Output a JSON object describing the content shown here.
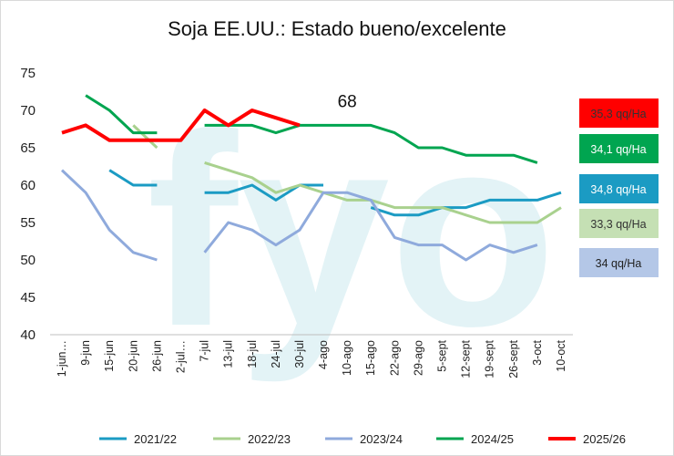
{
  "chart_data": {
    "type": "line",
    "title": "Soja EE.UU.: Estado bueno/excelente",
    "ylim": [
      40,
      75
    ],
    "yticks": [
      "40",
      "45",
      "50",
      "55",
      "60",
      "65",
      "70",
      "75"
    ],
    "categories": [
      "1-jun…",
      "9-jun",
      "15-jun",
      "20-jun",
      "26-jun",
      "2-jul…",
      "7-jul",
      "13-jul",
      "18-jul",
      "24-jul",
      "30-jul",
      "4-ago",
      "10-ago",
      "15-ago",
      "22-ago",
      "29-ago",
      "5-sept",
      "12-sept",
      "19-sept",
      "26-sept",
      "3-oct",
      "10-oct"
    ],
    "grid": false,
    "legend_position": "bottom",
    "watermark": "fyo",
    "annotation": {
      "text": "68",
      "category": "10-ago",
      "value": 68
    },
    "series": [
      {
        "name": "2021/22",
        "color": "#1b9bc3",
        "values": [
          67,
          null,
          62,
          60,
          60,
          null,
          59,
          59,
          60,
          58,
          60,
          60,
          null,
          57,
          56,
          56,
          57,
          57,
          58,
          58,
          58,
          59
        ],
        "box_label": "34,8 qq/Ha",
        "box_fill": "#1b9bc3",
        "box_text_color": "#ffffff"
      },
      {
        "name": "2022/23",
        "color": "#a9d18e",
        "values": [
          null,
          70,
          null,
          68,
          65,
          null,
          63,
          62,
          61,
          59,
          60,
          59,
          58,
          58,
          57,
          57,
          57,
          56,
          55,
          55,
          55,
          57
        ],
        "box_label": "33,3 qq/Ha",
        "box_fill": "#c5e0b4",
        "box_text_color": "#333333"
      },
      {
        "name": "2023/24",
        "color": "#8faadc",
        "values": [
          62,
          59,
          54,
          51,
          50,
          null,
          51,
          55,
          54,
          52,
          54,
          59,
          59,
          58,
          53,
          52,
          52,
          50,
          52,
          51,
          52,
          null
        ],
        "box_label": "34 qq/Ha",
        "box_fill": "#b4c7e7",
        "box_text_color": "#222222"
      },
      {
        "name": "2024/25",
        "color": "#00a550",
        "values": [
          null,
          72,
          70,
          67,
          67,
          null,
          68,
          68,
          68,
          67,
          68,
          68,
          68,
          68,
          67,
          65,
          65,
          64,
          64,
          64,
          63,
          null
        ],
        "box_label": "34,1 qq/Ha",
        "box_fill": "#00a550",
        "box_text_color": "#ffffff"
      },
      {
        "name": "2025/26",
        "color": "#ff0000",
        "values": [
          67,
          68,
          66,
          66,
          66,
          66,
          70,
          68,
          70,
          69,
          68,
          null,
          null,
          null,
          null,
          null,
          null,
          null,
          null,
          null,
          null,
          null
        ],
        "box_label": "35,3 qq/Ha",
        "box_fill": "#ff0000",
        "box_text_color": "#333333"
      }
    ]
  }
}
